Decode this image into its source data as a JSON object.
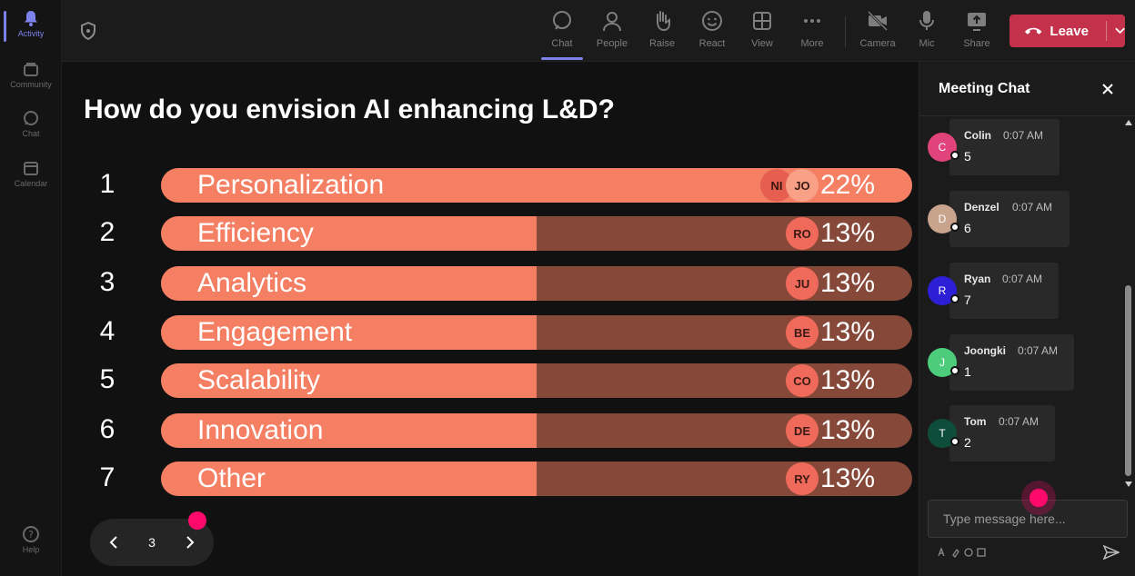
{
  "rail": {
    "items": [
      {
        "label": "Activity",
        "icon": "bell-icon"
      },
      {
        "label": "Community",
        "icon": "community-icon"
      },
      {
        "label": "Chat",
        "icon": "chat-icon"
      },
      {
        "label": "Calendar",
        "icon": "calendar-icon"
      },
      {
        "label": "Help",
        "icon": "help-icon"
      }
    ]
  },
  "toolbar": {
    "buttons": [
      {
        "label": "Chat",
        "icon": "chat-icon"
      },
      {
        "label": "People",
        "icon": "people-icon"
      },
      {
        "label": "Raise",
        "icon": "hand-icon"
      },
      {
        "label": "React",
        "icon": "smile-icon"
      },
      {
        "label": "View",
        "icon": "grid-icon"
      },
      {
        "label": "More",
        "icon": "more-icon"
      },
      {
        "label": "Camera",
        "icon": "camera-off-icon"
      },
      {
        "label": "Mic",
        "icon": "mic-icon"
      },
      {
        "label": "Share",
        "icon": "share-icon"
      }
    ],
    "leave_label": "Leave",
    "leave_color": "#c4314b",
    "accent": "#7b83eb"
  },
  "poll": {
    "question": "How do you envision AI enhancing L&D?",
    "options": [
      {
        "rank": "1",
        "label": "Personalization",
        "percent": 22,
        "percent_label": "22%",
        "avatars": [
          "NI",
          "JO"
        ]
      },
      {
        "rank": "2",
        "label": "Efficiency",
        "percent": 13,
        "percent_label": "13%",
        "avatars": [
          "RO"
        ]
      },
      {
        "rank": "3",
        "label": "Analytics",
        "percent": 13,
        "percent_label": "13%",
        "avatars": [
          "JU"
        ]
      },
      {
        "rank": "4",
        "label": "Engagement",
        "percent": 13,
        "percent_label": "13%",
        "avatars": [
          "BE"
        ]
      },
      {
        "rank": "5",
        "label": "Scalability",
        "percent": 13,
        "percent_label": "13%",
        "avatars": [
          "CO"
        ]
      },
      {
        "rank": "6",
        "label": "Innovation",
        "percent": 13,
        "percent_label": "13%",
        "avatars": [
          "DE"
        ]
      },
      {
        "rank": "7",
        "label": "Other",
        "percent": 13,
        "percent_label": "13%",
        "avatars": [
          "RY"
        ]
      }
    ],
    "bar_fill_color": "#f47f63",
    "bar_track_color": "#854839",
    "page": "3"
  },
  "chat": {
    "title": "Meeting Chat",
    "messages": [
      {
        "initial": "C",
        "name": "Colin",
        "time": "0:07 AM",
        "text": "5",
        "color": "#e0447a"
      },
      {
        "initial": "D",
        "name": "Denzel",
        "time": "0:07 AM",
        "text": "6",
        "color": "#c9a48c"
      },
      {
        "initial": "R",
        "name": "Ryan",
        "time": "0:07 AM",
        "text": "7",
        "color": "#2d1fd6"
      },
      {
        "initial": "J",
        "name": "Joongki",
        "time": "0:07 AM",
        "text": "1",
        "color": "#4dcd7c"
      },
      {
        "initial": "T",
        "name": "Tom",
        "time": "0:07 AM",
        "text": "2",
        "color": "#0e4d3a"
      }
    ],
    "placeholder": "Type message here..."
  }
}
